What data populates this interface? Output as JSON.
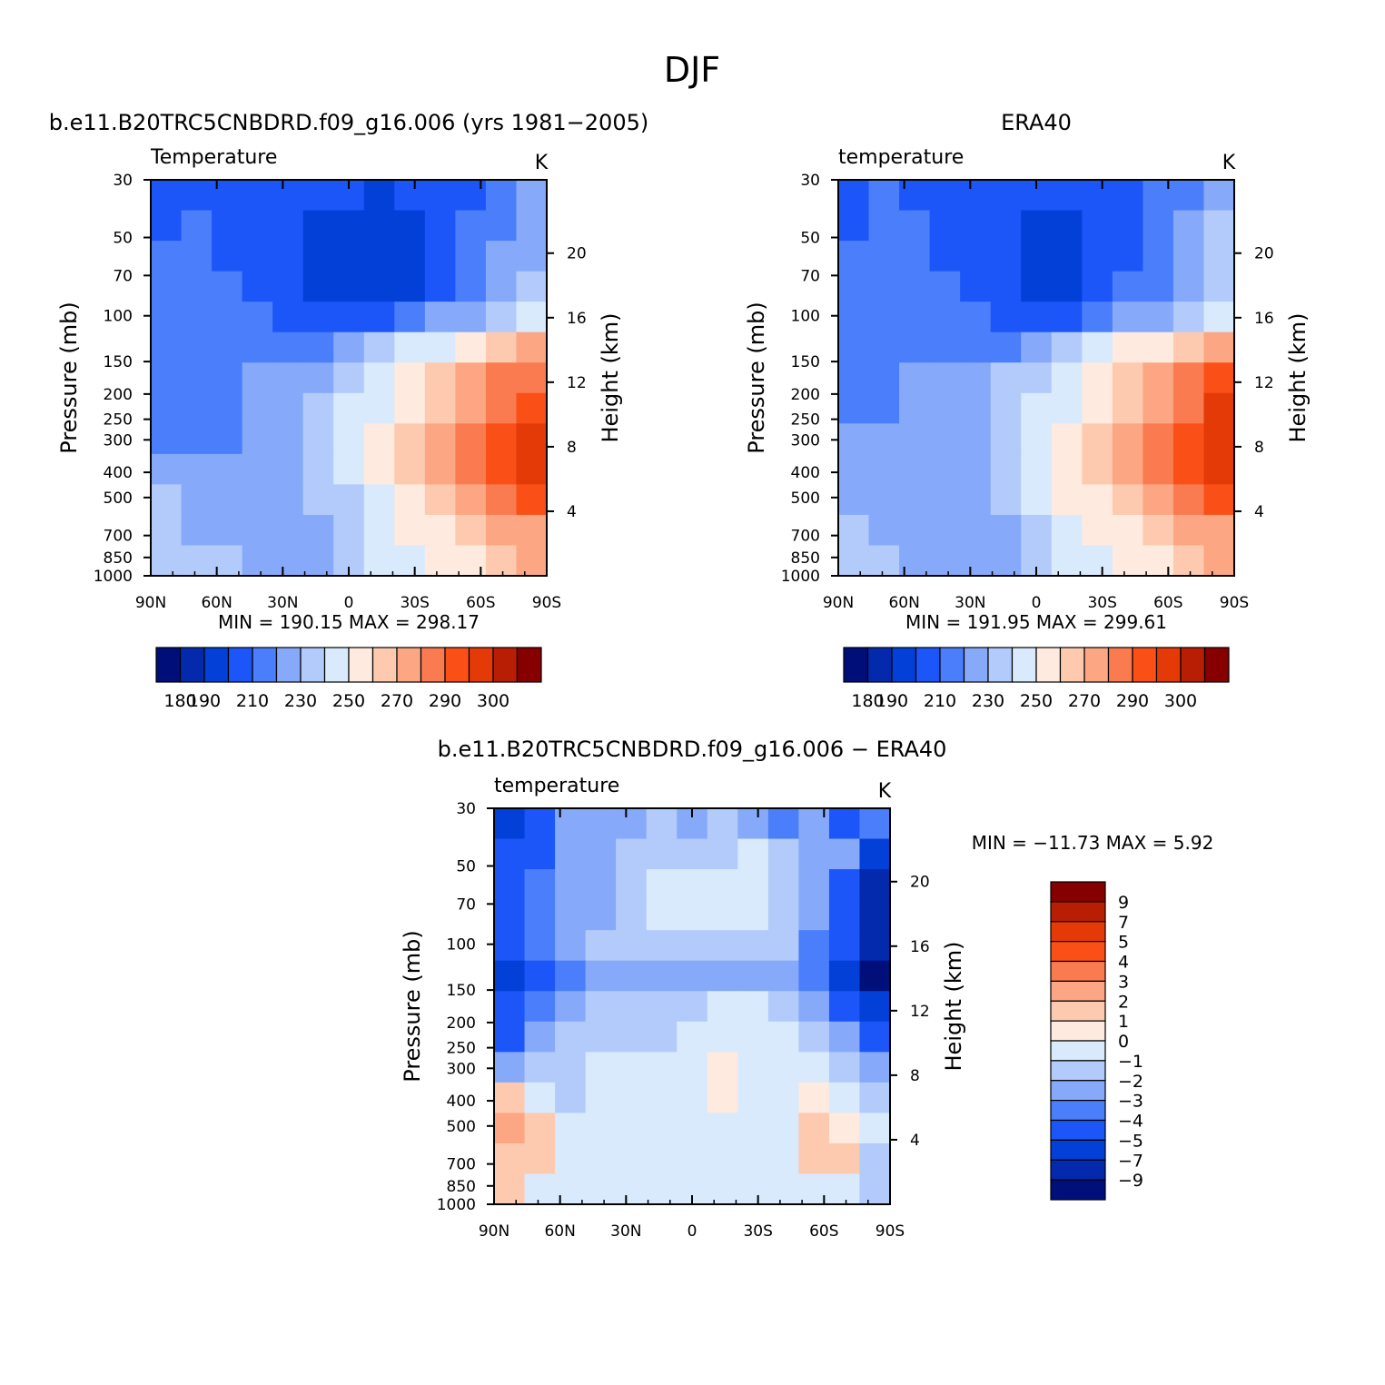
{
  "figure": {
    "title": "DJF"
  },
  "colors": {
    "abs_fills": [
      "#000e7a",
      "#0329ad",
      "#0340d8",
      "#1c56f8",
      "#4a7efa",
      "#86a9fa",
      "#b2cbfa",
      "#d8eafc",
      "#feeadf",
      "#fdcab0",
      "#fca683",
      "#fa7b50",
      "#fa5018",
      "#e43a07",
      "#b81e03",
      "#870000"
    ],
    "diff_fills": [
      "#010f7b",
      "#0329ad",
      "#0340d8",
      "#1c56f8",
      "#4a7efa",
      "#86a9fa",
      "#b2cbfa",
      "#d8eafc",
      "#feeadf",
      "#fdcab0",
      "#fca683",
      "#fa7b50",
      "#fa5018",
      "#e43a07",
      "#b81e03",
      "#870000"
    ]
  },
  "chart_data": [
    {
      "type": "heatmap",
      "title": "b.e11.B20TRC5CNBDRD.f09_g16.006 (yrs 1981−2005)",
      "left_label": "Temperature",
      "units": "K",
      "ylabel": "Pressure (mb)",
      "ylabel_right": "Height (km)",
      "x_ticks": [
        "90N",
        "60N",
        "30N",
        "0",
        "30S",
        "60S",
        "90S"
      ],
      "y_ticks": [
        "30",
        "50",
        "70",
        "100",
        "150",
        "200",
        "250",
        "300",
        "400",
        "500",
        "700",
        "850",
        "1000"
      ],
      "y_ticks_right": [
        "20",
        "16",
        "12",
        "8",
        "4"
      ],
      "ylim": [
        1000,
        30
      ],
      "y_scale": "log",
      "stats": "MIN = 190.15 MAX = 298.17",
      "min": 190.15,
      "max": 298.17,
      "colorbar": {
        "orientation": "horizontal",
        "labels": [
          "180",
          "190",
          "210",
          "230",
          "250",
          "270",
          "290",
          "300"
        ]
      },
      "cells": [
        [
          200,
          207,
          206,
          204,
          202,
          201,
          200,
          199,
          201,
          204,
          208,
          213,
          224
        ],
        [
          206,
          210,
          208,
          206,
          203,
          199,
          196,
          195,
          199,
          205,
          211,
          218,
          226
        ],
        [
          210,
          211,
          209,
          207,
          203,
          198,
          194,
          193,
          198,
          207,
          213,
          221,
          229
        ],
        [
          211,
          212,
          210,
          208,
          204,
          198,
          194,
          193,
          198,
          208,
          213,
          222,
          231
        ],
        [
          214,
          214,
          212,
          210,
          208,
          205,
          204,
          207,
          214,
          220,
          226,
          232,
          241
        ],
        [
          215,
          216,
          215,
          214,
          214,
          215,
          222,
          230,
          240,
          249,
          255,
          261,
          270
        ],
        [
          214,
          217,
          219,
          221,
          223,
          229,
          237,
          245,
          253,
          260,
          270,
          281,
          288
        ],
        [
          215,
          216,
          218,
          222,
          225,
          233,
          240,
          247,
          257,
          265,
          273,
          285,
          293
        ],
        [
          219,
          218,
          218,
          221,
          224,
          234,
          243,
          251,
          262,
          270,
          282,
          290,
          297
        ],
        [
          223,
          222,
          220,
          222,
          226,
          234,
          243,
          250,
          261,
          270,
          282,
          290,
          296
        ],
        [
          230,
          228,
          222,
          222,
          226,
          231,
          239,
          249,
          257,
          265,
          276,
          284,
          291
        ],
        [
          232,
          229,
          224,
          222,
          223,
          227,
          233,
          244,
          250,
          257,
          265,
          270,
          276
        ],
        [
          236,
          233,
          231,
          227,
          225,
          226,
          232,
          241,
          247,
          252,
          257,
          262,
          270
        ]
      ]
    },
    {
      "type": "heatmap",
      "title": "ERA40",
      "left_label": "temperature",
      "units": "K",
      "ylabel": "Pressure (mb)",
      "ylabel_right": "Height (km)",
      "x_ticks": [
        "90N",
        "60N",
        "30N",
        "0",
        "30S",
        "60S",
        "90S"
      ],
      "y_ticks": [
        "30",
        "50",
        "70",
        "100",
        "150",
        "200",
        "250",
        "300",
        "400",
        "500",
        "700",
        "850",
        "1000"
      ],
      "y_ticks_right": [
        "20",
        "16",
        "12",
        "8",
        "4"
      ],
      "ylim": [
        1000,
        30
      ],
      "y_scale": "log",
      "stats": "MIN = 191.95 MAX = 299.61",
      "min": 191.95,
      "max": 299.61,
      "colorbar": {
        "orientation": "horizontal",
        "labels": [
          "180",
          "190",
          "210",
          "230",
          "250",
          "270",
          "290",
          "300"
        ]
      },
      "cells": [
        [
          208,
          210,
          209,
          207,
          205,
          203,
          202,
          202,
          204,
          208,
          212,
          218,
          228
        ],
        [
          209,
          211,
          210,
          208,
          205,
          200,
          197,
          196,
          201,
          208,
          213,
          221,
          230
        ],
        [
          212,
          213,
          211,
          209,
          205,
          200,
          195,
          194,
          200,
          209,
          215,
          223,
          231
        ],
        [
          213,
          214,
          212,
          210,
          206,
          200,
          195,
          194,
          200,
          210,
          216,
          224,
          233
        ],
        [
          216,
          216,
          214,
          212,
          210,
          207,
          206,
          209,
          216,
          222,
          228,
          234,
          243
        ],
        [
          219,
          219,
          218,
          218,
          217,
          218,
          225,
          233,
          243,
          252,
          258,
          264,
          273
        ],
        [
          219,
          219,
          220,
          222,
          225,
          231,
          239,
          247,
          255,
          262,
          272,
          283,
          290
        ],
        [
          219,
          219,
          220,
          223,
          227,
          235,
          242,
          249,
          259,
          267,
          275,
          287,
          295
        ],
        [
          221,
          220,
          220,
          222,
          226,
          236,
          245,
          253,
          264,
          272,
          284,
          292,
          299
        ],
        [
          224,
          223,
          222,
          223,
          228,
          236,
          245,
          252,
          263,
          272,
          284,
          292,
          298
        ],
        [
          228,
          226,
          223,
          223,
          228,
          233,
          241,
          251,
          259,
          267,
          278,
          286,
          292
        ],
        [
          230,
          228,
          225,
          224,
          225,
          229,
          235,
          246,
          252,
          259,
          267,
          272,
          278
        ],
        [
          231,
          230,
          229,
          228,
          228,
          229,
          234,
          243,
          249,
          254,
          259,
          264,
          272
        ]
      ]
    },
    {
      "type": "heatmap",
      "title": "b.e11.B20TRC5CNBDRD.f09_g16.006 − ERA40",
      "left_label": "temperature",
      "units": "K",
      "ylabel": "Pressure (mb)",
      "ylabel_right": "Height (km)",
      "x_ticks": [
        "90N",
        "60N",
        "30N",
        "0",
        "30S",
        "60S",
        "90S"
      ],
      "y_ticks": [
        "30",
        "50",
        "70",
        "100",
        "150",
        "200",
        "250",
        "300",
        "400",
        "500",
        "700",
        "850",
        "1000"
      ],
      "y_ticks_right": [
        "20",
        "16",
        "12",
        "8",
        "4"
      ],
      "ylim": [
        1000,
        30
      ],
      "y_scale": "log",
      "stats": "MIN = −11.73 MAX = 5.92",
      "min": -11.73,
      "max": 5.92,
      "colorbar": {
        "orientation": "vertical",
        "labels": [
          "9",
          "7",
          "5",
          "4",
          "3",
          "2",
          "1",
          "0",
          "−1",
          "−2",
          "−3",
          "−4",
          "−5",
          "−7",
          "−9"
        ]
      },
      "cells": [
        [
          -8,
          -6,
          -3,
          -3,
          -3,
          -2,
          -3,
          -2,
          -3,
          -4,
          -3,
          -5,
          -4
        ],
        [
          -6,
          -5,
          -3,
          -3,
          -2,
          -2,
          -2,
          -2,
          -1.5,
          -2,
          -3,
          -3,
          -8
        ],
        [
          -5,
          -4,
          -3,
          -3,
          -2,
          -1,
          -1.5,
          -1,
          -1.5,
          -2,
          -3,
          -5,
          -9
        ],
        [
          -5,
          -4,
          -3,
          -3,
          -2,
          -1,
          -1,
          -1,
          -1,
          -2,
          -3,
          -6,
          -10
        ],
        [
          -5,
          -4,
          -3,
          -2.5,
          -2,
          -2,
          -2,
          -2,
          -2,
          -2.5,
          -4,
          -5,
          -9
        ],
        [
          -7,
          -5,
          -4,
          -3,
          -3,
          -3,
          -3,
          -3,
          -3,
          -3,
          -4,
          -7,
          -11
        ],
        [
          -6,
          -4,
          -3,
          -2,
          -2,
          -2,
          -2,
          -1,
          -1.5,
          -2,
          -3,
          -5,
          -8
        ],
        [
          -5,
          -3,
          -2,
          -2,
          -2,
          -2,
          -1,
          -1,
          -1,
          -1,
          -2,
          -3,
          -5
        ],
        [
          -3,
          -2,
          -2,
          -1.5,
          -1.5,
          -1.5,
          -1.5,
          -0.5,
          -1,
          -1,
          -1,
          -2,
          -3
        ],
        [
          0.5,
          -1,
          -2,
          -1.5,
          -1.5,
          -1.5,
          -1.5,
          -0.5,
          -1,
          -1,
          -0.5,
          -1,
          -2
        ],
        [
          1.5,
          0.5,
          -1,
          -1.5,
          -1.5,
          -1.5,
          -1,
          -1,
          -1,
          -1,
          0.5,
          -0.5,
          -1
        ],
        [
          1,
          0.5,
          -1,
          -1.5,
          -1.5,
          -1.5,
          -1.5,
          -1.5,
          -1.5,
          -1,
          0.5,
          0.5,
          -2
        ],
        [
          0.5,
          -1,
          -1.5,
          -1.5,
          -1.5,
          -1.5,
          -1,
          -1,
          -1,
          -1,
          -1,
          -1,
          -2
        ]
      ]
    }
  ]
}
